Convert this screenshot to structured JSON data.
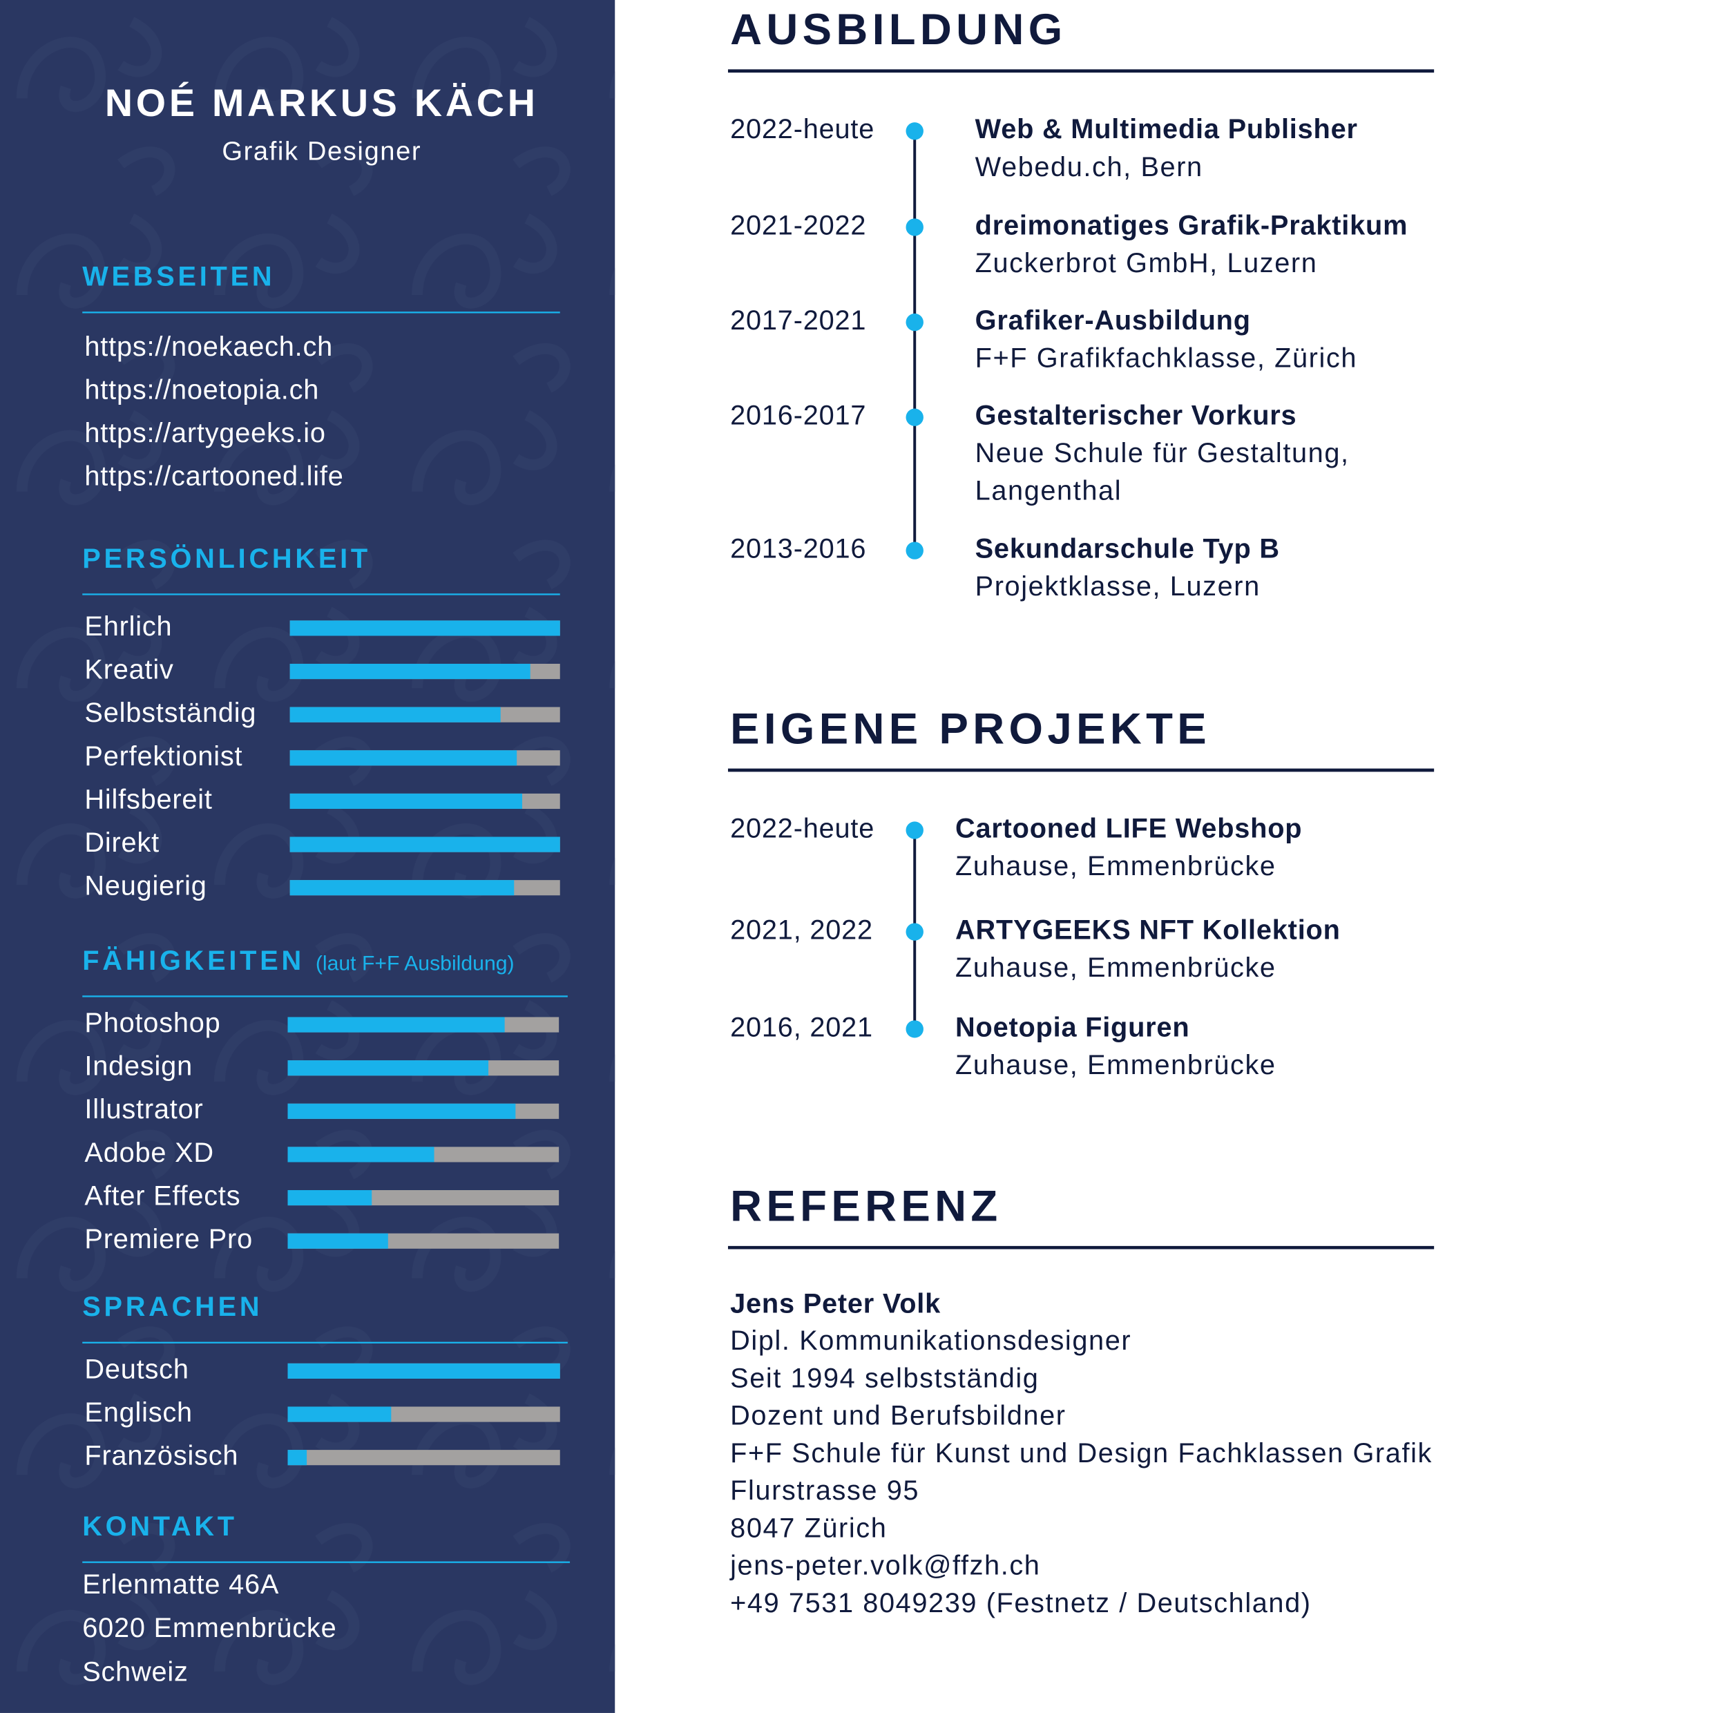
{
  "sidebar": {
    "name": "NOÉ MARKUS KÄCH",
    "role": "Grafik Designer",
    "websites": {
      "title": "WEBSEITEN",
      "items": [
        "https://noekaech.ch",
        "https://noetopia.ch",
        "https://artygeeks.io",
        "https://cartooned.life"
      ]
    },
    "personality": {
      "title": "PERSÖNLICHKEIT",
      "xlim": [
        0,
        100
      ],
      "items": [
        {
          "label": "Ehrlich",
          "value": 100
        },
        {
          "label": "Kreativ",
          "value": 89
        },
        {
          "label": "Selbstständig",
          "value": 78
        },
        {
          "label": "Perfektionist",
          "value": 84
        },
        {
          "label": "Hilfsbereit",
          "value": 86
        },
        {
          "label": "Direkt",
          "value": 100
        },
        {
          "label": "Neugierig",
          "value": 83
        }
      ]
    },
    "skills": {
      "title": "FÄHIGKEITEN",
      "note": "(laut F+F Ausbildung)",
      "xlim": [
        0,
        100
      ],
      "items": [
        {
          "label": "Photoshop",
          "value": 80
        },
        {
          "label": "Indesign",
          "value": 74
        },
        {
          "label": "Illustrator",
          "value": 84
        },
        {
          "label": "Adobe XD",
          "value": 54
        },
        {
          "label": "After Effects",
          "value": 31
        },
        {
          "label": "Premiere Pro",
          "value": 37
        }
      ]
    },
    "languages": {
      "title": "SPRACHEN",
      "xlim": [
        0,
        100
      ],
      "items": [
        {
          "label": "Deutsch",
          "value": 100
        },
        {
          "label": "Englisch",
          "value": 38
        },
        {
          "label": "Französisch",
          "value": 7
        }
      ]
    },
    "contact": {
      "title": "KONTAKT",
      "lines": [
        "Erlenmatte 46A",
        "6020 Emmenbrücke",
        "Schweiz"
      ]
    }
  },
  "education": {
    "title": "AUSBILDUNG",
    "entries": [
      {
        "period": "2022-heute",
        "title": "Web & Multimedia Publisher",
        "lines": [
          "Webedu.ch, Bern"
        ]
      },
      {
        "period": "2021-2022",
        "title": "dreimonatiges Grafik-Praktikum",
        "lines": [
          "Zuckerbrot GmbH, Luzern"
        ]
      },
      {
        "period": "2017-2021",
        "title": "Grafiker-Ausbildung",
        "lines": [
          "F+F Grafikfachklasse, Zürich"
        ]
      },
      {
        "period": "2016-2017",
        "title": "Gestalterischer Vorkurs",
        "lines": [
          "Neue Schule für Gestaltung,",
          "Langenthal"
        ]
      },
      {
        "period": "2013-2016",
        "title": "Sekundarschule Typ B",
        "lines": [
          "Projektklasse, Luzern"
        ]
      }
    ]
  },
  "projects": {
    "title": "EIGENE PROJEKTE",
    "entries": [
      {
        "period": "2022-heute",
        "title": "Cartooned LIFE Webshop",
        "lines": [
          "Zuhause, Emmenbrücke"
        ]
      },
      {
        "period": "2021, 2022",
        "title": "ARTYGEEKS NFT Kollektion",
        "lines": [
          "Zuhause, Emmenbrücke"
        ]
      },
      {
        "period": "2016, 2021",
        "title": "Noetopia Figuren",
        "lines": [
          "Zuhause, Emmenbrücke"
        ]
      }
    ]
  },
  "reference": {
    "title": "REFERENZ",
    "name": "Jens Peter Volk",
    "lines": [
      "Dipl. Kommunikationsdesigner",
      "Seit 1994 selbstständig",
      "Dozent und Berufsbildner",
      "F+F Schule für Kunst und Design Fachklassen Grafik",
      "Flurstrasse 95",
      "8047 Zürich",
      "jens-peter.volk@ffzh.ch",
      "+49 7531 8049239 (Festnetz / Deutschland)"
    ]
  }
}
